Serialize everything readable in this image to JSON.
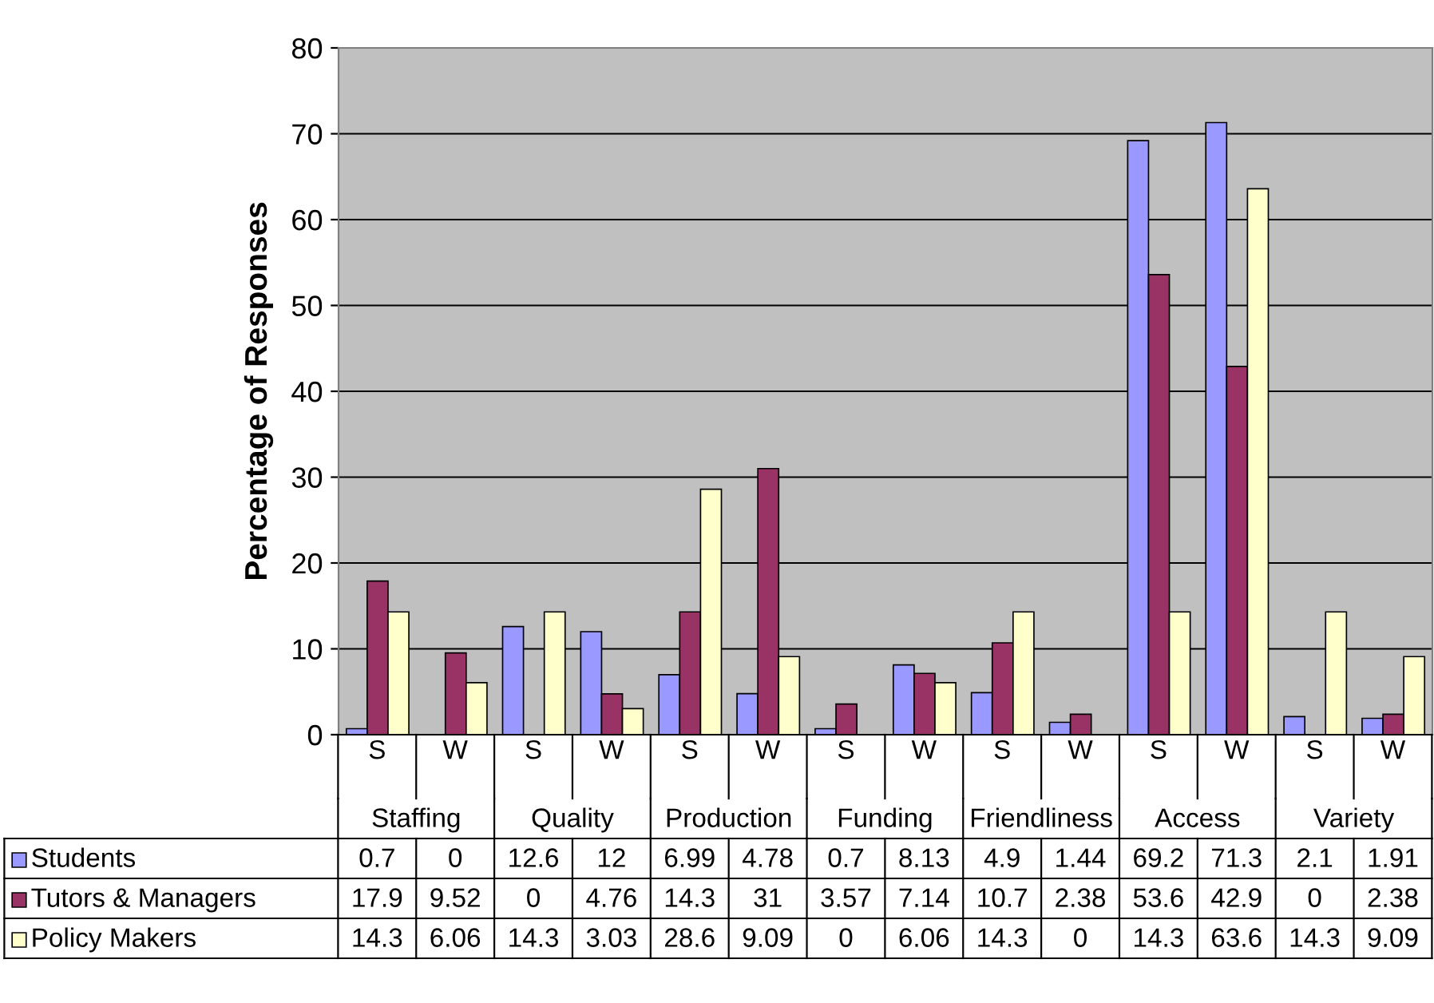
{
  "chart_data": {
    "type": "bar",
    "ylabel": "Percentage of Responses",
    "categories": [
      "S",
      "W",
      "S",
      "W",
      "S",
      "W",
      "S",
      "W",
      "S",
      "W",
      "S",
      "W",
      "S",
      "W"
    ],
    "annotations": [
      "Staffing",
      "Quality",
      "Production",
      "Funding",
      "Friendliness",
      "Access",
      "Variety"
    ],
    "series": [
      {
        "name": "Students",
        "color": "#9999ff",
        "values": [
          0.7,
          0,
          12.6,
          12,
          6.99,
          4.78,
          0.7,
          8.13,
          4.9,
          1.44,
          69.2,
          71.3,
          2.1,
          1.91
        ]
      },
      {
        "name": "Tutors & Managers",
        "color": "#993366",
        "values": [
          17.9,
          9.52,
          0,
          4.76,
          14.3,
          31,
          3.57,
          7.14,
          10.7,
          2.38,
          53.6,
          42.9,
          0,
          2.38
        ]
      },
      {
        "name": "Policy Makers",
        "color": "#ffffcc",
        "values": [
          14.3,
          6.06,
          14.3,
          3.03,
          28.6,
          9.09,
          0,
          6.06,
          14.3,
          0,
          14.3,
          63.6,
          14.3,
          9.09
        ]
      }
    ],
    "ylim": [
      0,
      80
    ],
    "yticks": [
      0,
      10,
      20,
      30,
      40,
      50,
      60,
      70,
      80
    ],
    "grid": "y",
    "legend": "bottom",
    "data_labels": true
  }
}
